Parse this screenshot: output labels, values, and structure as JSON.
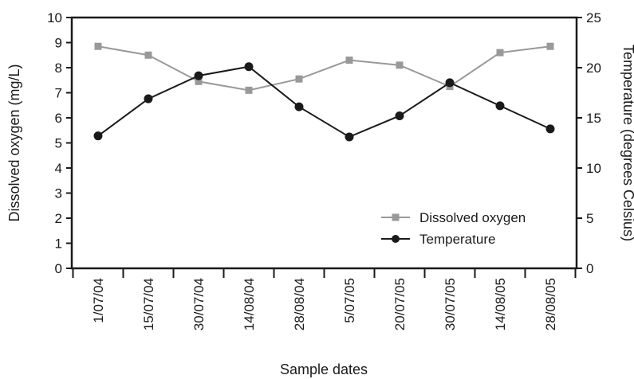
{
  "chart_data": {
    "type": "line",
    "title": "",
    "xlabel": "Sample dates",
    "ylabel_left": "Dissolved oxygen (mg/L)",
    "ylabel_right": "Temperature (degrees Celsius)",
    "categories": [
      "1/07/04",
      "15/07/04",
      "30/07/04",
      "14/08/04",
      "28/08/04",
      "5/07/05",
      "20/07/05",
      "30/07/05",
      "14/08/05",
      "28/08/05"
    ],
    "y_left": {
      "min": 0,
      "max": 10,
      "ticks": [
        "0",
        "1",
        "2",
        "3",
        "4",
        "5",
        "6",
        "7",
        "8",
        "9",
        "10"
      ]
    },
    "y_right": {
      "min": 0,
      "max": 25,
      "ticks": [
        "0",
        "5",
        "10",
        "15",
        "20",
        "25"
      ]
    },
    "legend_position": "bottom-right",
    "grid": false,
    "series": [
      {
        "name": "Dissolved oxygen",
        "axis": "left",
        "color": "#999999",
        "marker": "square",
        "values": [
          8.85,
          8.5,
          7.45,
          7.1,
          7.55,
          8.3,
          8.1,
          7.25,
          8.6,
          8.85
        ]
      },
      {
        "name": "Temperature",
        "axis": "right",
        "color": "#1a1a1a",
        "marker": "circle",
        "values": [
          13.2,
          16.9,
          19.2,
          20.1,
          16.1,
          13.1,
          15.2,
          18.5,
          16.2,
          13.9
        ]
      }
    ]
  }
}
